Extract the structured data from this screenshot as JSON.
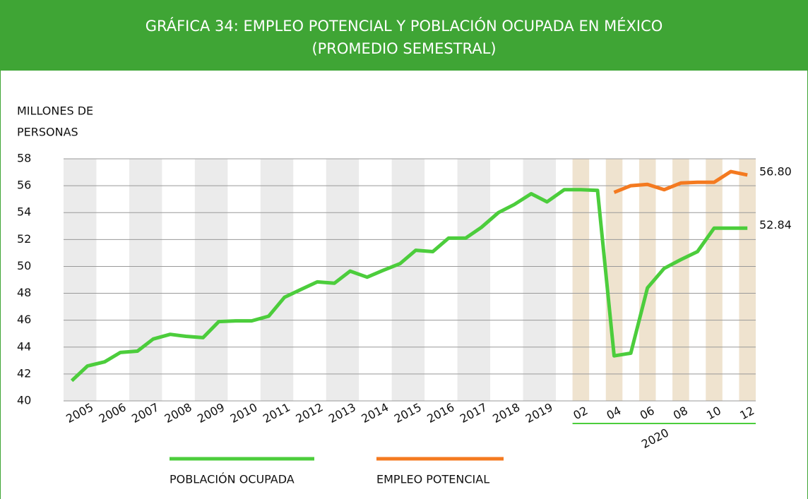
{
  "chart_data": {
    "type": "line",
    "title": "GRÁFICA 34: EMPLEO POTENCIAL Y POBLACIÓN OCUPADA EN MÉXICO",
    "subtitle": "(PROMEDIO SEMESTRAL)",
    "ylabel": [
      "MILLONES DE",
      "PERSONAS"
    ],
    "years": [
      "2005",
      "2006",
      "2007",
      "2008",
      "2009",
      "2010",
      "2011",
      "2012",
      "2013",
      "2014",
      "2015",
      "2016",
      "2017",
      "2018",
      "2019"
    ],
    "months": [
      "02",
      "04",
      "06",
      "08",
      "10",
      "12"
    ],
    "month_group": "2020",
    "ylim": [
      40,
      58
    ],
    "yticks": [
      40,
      42,
      44,
      46,
      48,
      50,
      52,
      54,
      56,
      58
    ],
    "grid": true,
    "series": [
      {
        "name": "POBLACIÓN OCUPADA",
        "color": "#4ccd3c",
        "values": [
          41.5,
          42.6,
          42.9,
          43.6,
          43.7,
          44.6,
          44.95,
          44.8,
          44.7,
          45.9,
          45.95,
          45.95,
          46.3,
          47.7,
          48.3,
          48.85,
          48.75,
          49.65,
          49.2,
          49.7,
          50.2,
          51.2,
          51.1,
          52.1,
          52.1,
          52.9,
          54.0,
          54.6,
          55.4,
          54.8,
          55.7,
          55.7,
          55.65,
          43.35,
          43.55,
          48.4,
          49.85,
          50.5,
          51.1,
          52.84,
          52.84,
          52.84
        ],
        "end_label": "52.84"
      },
      {
        "name": "EMPLEO POTENCIAL",
        "color": "#f47a20",
        "values": [
          null,
          null,
          null,
          null,
          null,
          null,
          null,
          null,
          null,
          null,
          null,
          null,
          null,
          null,
          null,
          null,
          null,
          null,
          null,
          null,
          null,
          null,
          null,
          null,
          null,
          null,
          null,
          null,
          null,
          null,
          null,
          null,
          null,
          55.5,
          56.0,
          56.1,
          55.7,
          56.2,
          56.25,
          56.25,
          57.05,
          56.8
        ],
        "end_label": "56.80"
      }
    ]
  }
}
